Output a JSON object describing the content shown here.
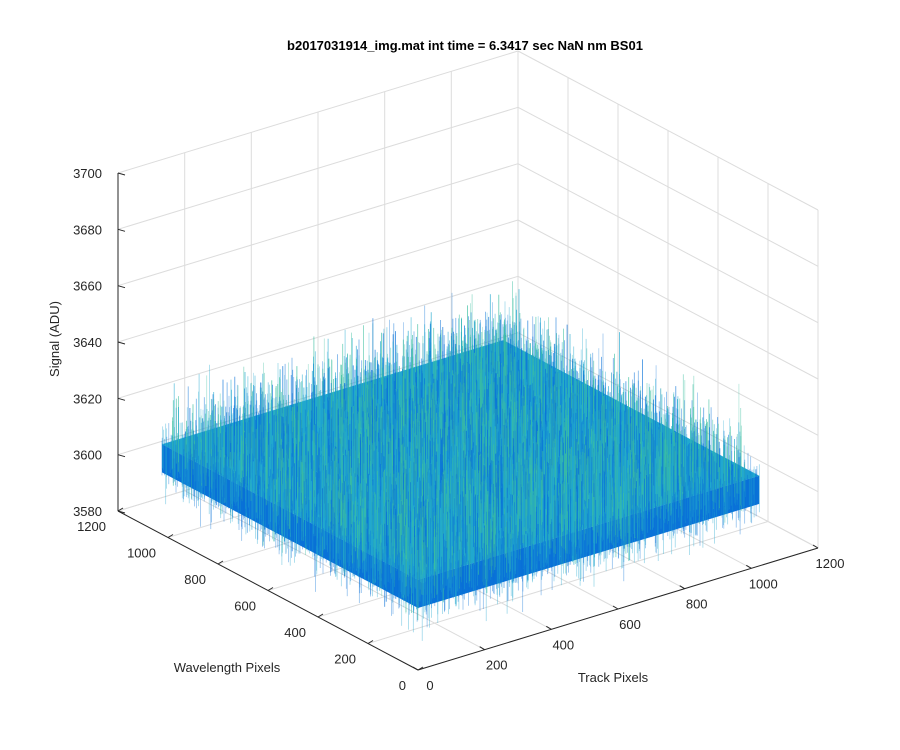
{
  "chart_data": {
    "type": "surface",
    "title": "b2017031914_img.mat int time = 6.3417 sec  NaN nm BS01",
    "xlabel": "Track Pixels",
    "ylabel": "Wavelength Pixels",
    "zlabel": "Signal (ADU)",
    "xlim": [
      0,
      1200
    ],
    "ylim": [
      0,
      1200
    ],
    "zlim": [
      3580,
      3700
    ],
    "x_ticks": [
      "0",
      "200",
      "400",
      "600",
      "800",
      "1000",
      "1200"
    ],
    "y_ticks": [
      "0",
      "200",
      "400",
      "600",
      "800",
      "1000",
      "1200"
    ],
    "z_ticks": [
      "3580",
      "3600",
      "3620",
      "3640",
      "3660",
      "3680",
      "3700"
    ],
    "surface_extent": {
      "x": [
        0,
        1024
      ],
      "y": [
        0,
        1024
      ]
    },
    "signal_mean": 3612,
    "signal_noise_range": [
      3590,
      3655
    ],
    "grid": true,
    "colormap": "parula",
    "colors": {
      "low": "#0a72d8",
      "mid": "#21a8cf",
      "high": "#3cbfa0"
    }
  }
}
